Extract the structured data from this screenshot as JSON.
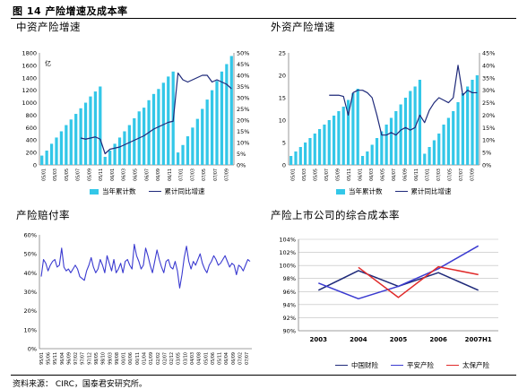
{
  "caption": "图 14 产险增速及成本率",
  "source": "资料来源： CIRC，国泰君安研究所。",
  "colors": {
    "bar": "#33c7e8",
    "line": "#1f2a7a",
    "red": "#e02a2a",
    "blue": "#3a3ad0",
    "axis": "#7f7f7f"
  },
  "chart_data": [
    {
      "type": "bar",
      "title": "中资产险增速",
      "unit_label": "亿",
      "ylim": [
        0,
        1800
      ],
      "yticks": [
        "0",
        "200",
        "400",
        "600",
        "800",
        "1000",
        "1200",
        "1400",
        "1600",
        "1800"
      ],
      "y2lim": [
        0,
        50
      ],
      "y2ticks": [
        "0%",
        "5%",
        "10%",
        "15%",
        "20%",
        "25%",
        "30%",
        "35%",
        "40%",
        "45%",
        "50%"
      ],
      "xticks": [
        "05/01",
        "05/03",
        "05/05",
        "05/07",
        "05/09",
        "05/11",
        "06/01",
        "06/03",
        "06/05",
        "06/07",
        "06/09",
        "06/11",
        "07/01",
        "07/03",
        "07/05",
        "07/07",
        "07/09"
      ],
      "series": [
        {
          "name": "当年累计数",
          "kind": "bar",
          "values": [
            150,
            230,
            340,
            440,
            540,
            640,
            730,
            820,
            910,
            1000,
            1100,
            1180,
            1260,
            130,
            230,
            340,
            440,
            540,
            640,
            750,
            860,
            920,
            1040,
            1140,
            1220,
            1320,
            1420,
            1500,
            200,
            320,
            460,
            600,
            740,
            900,
            1050,
            1200,
            1350,
            1500,
            1620,
            1750
          ]
        },
        {
          "name": "累计同比增速",
          "kind": "line",
          "values": [
            null,
            null,
            null,
            null,
            null,
            null,
            null,
            null,
            12,
            11.5,
            12,
            12.5,
            11.5,
            5,
            7,
            7.5,
            8,
            9,
            10,
            11,
            12,
            13,
            14.5,
            16,
            17,
            18,
            19,
            19.5,
            41,
            38,
            37,
            38,
            39,
            40,
            40,
            37,
            38,
            37,
            36,
            34
          ]
        }
      ]
    },
    {
      "type": "bar",
      "title": "外资产险增速",
      "ylim": [
        0,
        25
      ],
      "yticks": [
        "0",
        "5",
        "10",
        "15",
        "20",
        "25"
      ],
      "y2lim": [
        0,
        45
      ],
      "y2ticks": [
        "0%",
        "5%",
        "10%",
        "15%",
        "20%",
        "25%",
        "30%",
        "35%",
        "40%",
        "45%"
      ],
      "xticks": [
        "05/01",
        "05/03",
        "05/05",
        "05/07",
        "05/09",
        "05/11",
        "06/01",
        "06/03",
        "06/05",
        "06/07",
        "06/09",
        "06/11",
        "07/01",
        "07/03",
        "07/05",
        "07/07",
        "07/09"
      ],
      "series": [
        {
          "name": "当年累计数",
          "kind": "bar",
          "values": [
            2,
            3,
            4,
            5,
            6,
            7,
            8,
            9,
            10,
            11,
            12,
            13,
            14.5,
            16,
            17,
            2,
            3,
            4.5,
            6,
            7.5,
            9,
            10.5,
            12,
            13.5,
            15,
            16.5,
            17.5,
            19,
            2.5,
            4,
            5.5,
            7,
            9,
            10.5,
            12,
            14,
            16,
            17.5,
            19,
            20
          ]
        },
        {
          "name": "累计同比增速",
          "kind": "line",
          "values": [
            null,
            null,
            null,
            null,
            null,
            null,
            null,
            null,
            28,
            28,
            28,
            27.5,
            20,
            29,
            30,
            30,
            29,
            27,
            20,
            12,
            12,
            13,
            12,
            14,
            15,
            14,
            15,
            20,
            17,
            22,
            25,
            27,
            26,
            25,
            27,
            40,
            28,
            30,
            29,
            29
          ]
        }
      ]
    },
    {
      "type": "line",
      "title": "产险赔付率",
      "ylim": [
        0,
        60
      ],
      "yticks": [
        "0%",
        "10%",
        "20%",
        "30%",
        "40%",
        "50%",
        "60%"
      ],
      "xticks": [
        "95/01",
        "95/06",
        "95/11",
        "96/04",
        "96/09",
        "97/02",
        "97/07",
        "97/12",
        "98/05",
        "98/10",
        "99/03",
        "99/08",
        "00/01",
        "00/06",
        "00/11",
        "01/04",
        "01/09",
        "02/02",
        "02/07",
        "02/12",
        "03/05",
        "03/10",
        "04/03",
        "04/08",
        "05/01",
        "05/06",
        "05/11",
        "06/04",
        "06/09",
        "07/02",
        "07/07"
      ],
      "series": [
        {
          "name": "赔付率",
          "values": [
            38,
            47,
            45,
            41,
            44,
            46,
            47,
            43,
            44,
            53,
            43,
            41,
            42,
            40,
            42,
            44,
            42,
            38,
            37,
            36,
            41,
            44,
            48,
            43,
            40,
            42,
            47,
            44,
            40,
            49,
            45,
            41,
            47,
            40,
            42,
            45,
            40,
            46,
            47,
            44,
            42,
            55,
            49,
            46,
            42,
            44,
            53,
            49,
            44,
            40,
            46,
            52,
            47,
            43,
            40,
            46,
            47,
            43,
            42,
            46,
            41,
            32,
            39,
            48,
            54,
            46,
            42,
            46,
            44,
            47,
            50,
            45,
            42,
            40,
            44,
            46,
            49,
            47,
            44,
            45,
            47,
            49,
            46,
            43,
            45,
            44,
            39,
            44,
            43,
            41,
            44,
            47,
            46
          ]
        }
      ]
    },
    {
      "type": "line",
      "title": "产险上市公司的综合成本率",
      "ylim": [
        90,
        104
      ],
      "yticks": [
        "90%",
        "92%",
        "94%",
        "96%",
        "98%",
        "100%",
        "102%",
        "104%"
      ],
      "categories": [
        "2003",
        "2004",
        "2005",
        "2006",
        "2007H1"
      ],
      "series": [
        {
          "name": "中国财险",
          "values": [
            96.2,
            99.2,
            96.8,
            98.9,
            96.2
          ]
        },
        {
          "name": "平安产险",
          "values": [
            97.3,
            94.9,
            96.8,
            99.5,
            103
          ]
        },
        {
          "name": "太保产险",
          "values": [
            null,
            99.7,
            95.1,
            99.8,
            98.6
          ]
        }
      ]
    }
  ]
}
